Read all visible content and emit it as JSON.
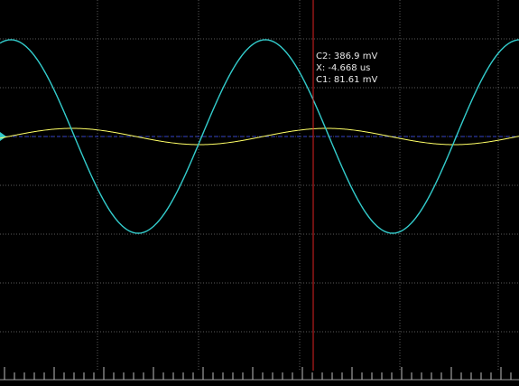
{
  "cursor_readout": {
    "c2": "C2: 386.9 mV",
    "x": "X: -4.668 us",
    "c1": "C1: 81.61 mV"
  },
  "colors": {
    "background": "#000000",
    "grid": "#5a5a5a",
    "channel1": "#ffff66",
    "channel2": "#33cccc",
    "cursor": "#dd2222",
    "reference": "#3344cc"
  },
  "chart_data": {
    "type": "line",
    "title": "",
    "xlabel": "",
    "ylabel": "",
    "grid": true,
    "series": [
      {
        "name": "C1",
        "shape": "sine",
        "amplitude": 0.1,
        "cycles": 2
      },
      {
        "name": "C2",
        "shape": "sine",
        "amplitude": 1.0,
        "cycles": 2
      }
    ],
    "cursor": {
      "x": "-4.668 us",
      "c1": "81.61 mV",
      "c2": "386.9 mV"
    }
  }
}
